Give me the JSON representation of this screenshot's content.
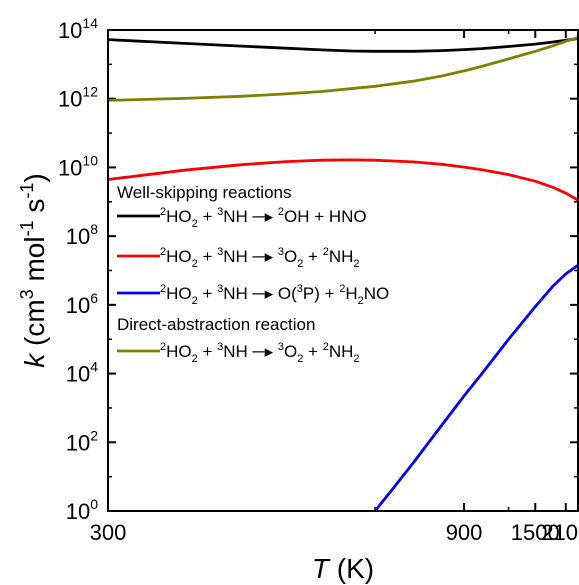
{
  "chart_data": {
    "type": "line",
    "title": "",
    "x_scale": "reciprocal",
    "y_scale": "log",
    "xlim": [
      300,
      2500
    ],
    "ylim": [
      1,
      100000000000000.0
    ],
    "x_ticks": [
      {
        "value": 300,
        "label": "300"
      },
      {
        "value": 900,
        "label": "900"
      },
      {
        "value": 1500,
        "label": "1500"
      },
      {
        "value": 2100,
        "label": "2100"
      }
    ],
    "y_ticks": [
      {
        "exp": 0,
        "base": "10",
        "sup": "0"
      },
      {
        "exp": 2,
        "base": "10",
        "sup": "2"
      },
      {
        "exp": 4,
        "base": "10",
        "sup": "4"
      },
      {
        "exp": 6,
        "base": "10",
        "sup": "6"
      },
      {
        "exp": 8,
        "base": "10",
        "sup": "8"
      },
      {
        "exp": 10,
        "base": "10",
        "sup": "10"
      },
      {
        "exp": 12,
        "base": "10",
        "sup": "12"
      },
      {
        "exp": 14,
        "base": "10",
        "sup": "14"
      }
    ],
    "xlabel": {
      "var": "T",
      "unit": " (K)"
    },
    "ylabel": {
      "var": "k",
      "open": " (cm",
      "p1": "3",
      "mid": " mol",
      "p2": "-1",
      "s": " s",
      "p3": "-1",
      "close": ")"
    },
    "legend_headings": {
      "well": "Well-skipping reactions",
      "direct": "Direct-abstraction reaction"
    },
    "series": [
      {
        "id": "ws1",
        "color": "#000000",
        "label": [
          [
            "sup",
            "2"
          ],
          [
            "t",
            "HO"
          ],
          [
            "sub",
            "2"
          ],
          [
            "t",
            " + "
          ],
          [
            "sup",
            "3"
          ],
          [
            "t",
            "NH"
          ],
          [
            "arrow",
            ""
          ],
          [
            "sup",
            "2"
          ],
          [
            "t",
            "OH + HNO"
          ]
        ],
        "x": [
          300,
          350,
          400,
          450,
          500,
          550,
          600,
          700,
          800,
          900,
          1000,
          1200,
          1500,
          1800,
          2100,
          2500
        ],
        "log10k": [
          13.72,
          13.61,
          13.53,
          13.47,
          13.42,
          13.39,
          13.38,
          13.38,
          13.4,
          13.43,
          13.46,
          13.52,
          13.59,
          13.65,
          13.7,
          13.75
        ]
      },
      {
        "id": "ws2",
        "color": "#ff0000",
        "label": [
          [
            "sup",
            "2"
          ],
          [
            "t",
            "HO"
          ],
          [
            "sub",
            "2"
          ],
          [
            "t",
            " + "
          ],
          [
            "sup",
            "3"
          ],
          [
            "t",
            "NH"
          ],
          [
            "arrow",
            ""
          ],
          [
            "sup",
            "3"
          ],
          [
            "t",
            "O"
          ],
          [
            "sub",
            "2"
          ],
          [
            "t",
            " + "
          ],
          [
            "sup",
            "2"
          ],
          [
            "t",
            "NH"
          ],
          [
            "sub",
            "2"
          ]
        ],
        "x": [
          300,
          350,
          400,
          450,
          500,
          550,
          600,
          700,
          800,
          900,
          1000,
          1200,
          1500,
          1800,
          2100,
          2500
        ],
        "log10k": [
          9.65,
          9.92,
          10.08,
          10.17,
          10.21,
          10.22,
          10.21,
          10.16,
          10.09,
          10.01,
          9.93,
          9.79,
          9.6,
          9.42,
          9.25,
          9.05
        ]
      },
      {
        "id": "ws3",
        "color": "#0000ff",
        "label": [
          [
            "sup",
            "2"
          ],
          [
            "t",
            "HO"
          ],
          [
            "sub",
            "2"
          ],
          [
            "t",
            " + "
          ],
          [
            "sup",
            "3"
          ],
          [
            "t",
            "NH"
          ],
          [
            "arrow",
            ""
          ],
          [
            "t",
            "O("
          ],
          [
            "sup",
            "3"
          ],
          [
            "t",
            "P) + "
          ],
          [
            "sup",
            "2"
          ],
          [
            "t",
            "H"
          ],
          [
            "sub",
            "2"
          ],
          [
            "t",
            "NO"
          ]
        ],
        "x": [
          600,
          650,
          700,
          800,
          900,
          1000,
          1200,
          1500,
          1800,
          2100,
          2500
        ],
        "log10k": [
          0.0,
          0.75,
          1.4,
          2.5,
          3.35,
          4.0,
          5.0,
          5.95,
          6.55,
          6.9,
          7.15
        ]
      },
      {
        "id": "da1",
        "color": "#808000",
        "label": [
          [
            "sup",
            "2"
          ],
          [
            "t",
            "HO"
          ],
          [
            "sub",
            "2"
          ],
          [
            "t",
            " + "
          ],
          [
            "sup",
            "3"
          ],
          [
            "t",
            "NH"
          ],
          [
            "arrow",
            ""
          ],
          [
            "sup",
            "3"
          ],
          [
            "t",
            "O"
          ],
          [
            "sub",
            "2"
          ],
          [
            "t",
            " + "
          ],
          [
            "sup",
            "2"
          ],
          [
            "t",
            "NH"
          ],
          [
            "sub",
            "2"
          ]
        ],
        "x": [
          300,
          350,
          400,
          450,
          500,
          600,
          700,
          800,
          900,
          1000,
          1200,
          1500,
          1800,
          2100,
          2500
        ],
        "log10k": [
          11.95,
          12.01,
          12.07,
          12.14,
          12.21,
          12.36,
          12.51,
          12.66,
          12.81,
          12.94,
          13.16,
          13.38,
          13.54,
          13.67,
          13.78
        ]
      }
    ],
    "grid": false,
    "legend_position": "left"
  }
}
